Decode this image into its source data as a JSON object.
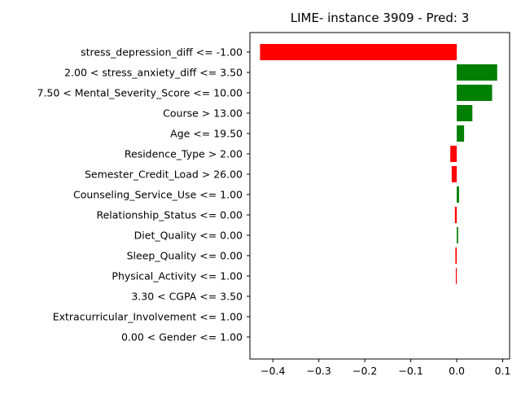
{
  "chart_data": {
    "type": "bar",
    "orientation": "horizontal",
    "title": "LIME- instance 3909 - Pred: 3",
    "xlabel": "",
    "ylabel": "",
    "xlim": [
      -0.45,
      0.115
    ],
    "xticks": [
      -0.4,
      -0.3,
      -0.2,
      -0.1,
      0.0,
      0.1
    ],
    "xtick_labels": [
      "−0.4",
      "−0.3",
      "−0.2",
      "−0.1",
      "0.0",
      "0.1"
    ],
    "grid": false,
    "legend": "none",
    "categories": [
      "stress_depression_diff <= -1.00",
      "2.00 < stress_anxiety_diff <= 3.50",
      "7.50 < Mental_Severity_Score <= 10.00",
      "Course > 13.00",
      "Age <= 19.50",
      "Residence_Type > 2.00",
      "Semester_Credit_Load > 26.00",
      "Counseling_Service_Use <= 1.00",
      "Relationship_Status <= 0.00",
      "Diet_Quality <= 0.00",
      "Sleep_Quality <= 0.00",
      "Physical_Activity <= 1.00",
      "3.30 < CGPA <= 3.50",
      "Extracurricular_Involvement <= 1.00",
      "0.00 < Gender <= 1.00"
    ],
    "values": [
      -0.428,
      0.088,
      0.077,
      0.034,
      0.016,
      -0.014,
      -0.011,
      0.005,
      -0.004,
      0.003,
      -0.003,
      -0.002,
      0.0,
      0.0,
      0.0
    ],
    "positive_color": "#008000",
    "negative_color": "#ff0000"
  }
}
